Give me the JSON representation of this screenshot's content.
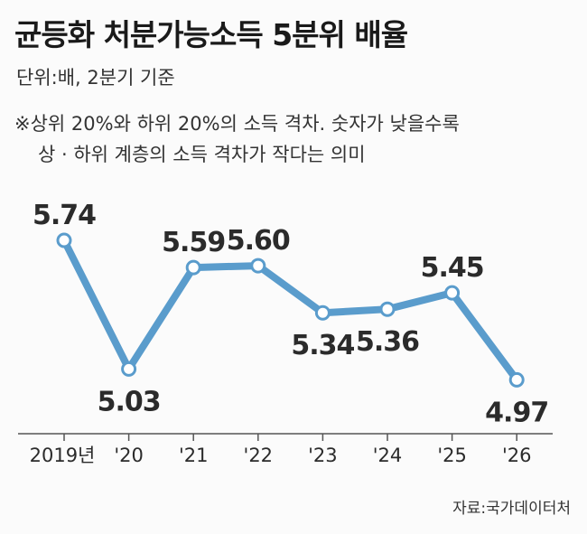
{
  "header": {
    "title": "균등화 처분가능소득 5분위 배율",
    "unit": "단위:배, 2분기 기준",
    "note_line1": "※상위 20%와 하위 20%의 소득 격차. 숫자가 낮을수록",
    "note_line2": "상 · 하위 계층의 소득 격차가 작다는 의미"
  },
  "footer": {
    "source": "자료:국가데이터처"
  },
  "colors": {
    "line": "#5a9ccc",
    "marker_fill": "#ffffff",
    "axis": "#555555"
  },
  "chart_data": {
    "type": "line",
    "title": "균등화 처분가능소득 5분위 배율",
    "categories": [
      "2019년",
      "'20",
      "'21",
      "'22",
      "'23",
      "'24",
      "'25",
      "'26"
    ],
    "values": [
      5.74,
      5.03,
      5.59,
      5.6,
      5.34,
      5.36,
      5.45,
      4.97
    ],
    "labels": [
      "5.74",
      "5.03",
      "5.59",
      "5.60",
      "5.34",
      "5.36",
      "5.45",
      "4.97"
    ],
    "label_positions": [
      "above",
      "below",
      "above",
      "above",
      "below",
      "below",
      "above",
      "below"
    ],
    "grid": false,
    "legend": "none"
  }
}
